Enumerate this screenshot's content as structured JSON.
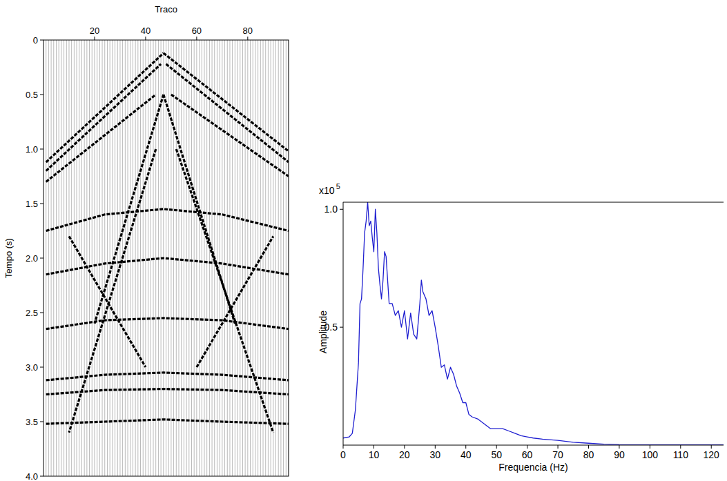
{
  "chart_data": [
    {
      "type": "wiggle",
      "x_label": "Traco",
      "y_label": "Tempo (s)",
      "xlim": [
        0,
        96
      ],
      "xticks": [
        20,
        40,
        60,
        80
      ],
      "ylim": [
        0,
        4
      ],
      "yticks": [
        0,
        0.5,
        {
          "value": 1,
          "label": "1.0"
        },
        1.5,
        {
          "value": 2,
          "label": "2.0"
        },
        2.5,
        {
          "value": 3,
          "label": "3.0"
        },
        3.5,
        {
          "value": 4,
          "label": "4.0"
        }
      ],
      "color": "#000000",
      "traces": {
        "x": [
          1,
          2,
          3,
          4,
          5,
          6,
          7,
          8,
          9,
          10,
          11,
          12,
          13,
          14,
          15,
          16,
          17,
          18,
          19,
          20,
          21,
          22,
          23,
          24,
          25,
          26,
          27,
          28,
          29,
          30,
          31,
          32,
          33,
          34,
          35,
          36,
          37,
          38,
          39,
          40,
          41,
          42,
          43,
          44,
          45,
          46,
          47,
          48,
          49,
          50,
          51,
          52,
          53,
          54,
          55,
          56,
          57,
          58,
          59,
          60,
          61,
          62,
          63,
          64,
          65,
          66,
          67,
          68,
          69,
          70,
          71,
          72,
          73,
          74,
          75,
          76,
          77,
          78,
          79,
          80,
          81,
          82,
          83,
          84,
          85,
          86,
          87,
          88,
          89,
          90,
          91,
          92,
          93,
          94,
          95,
          96
        ]
      },
      "events": [
        {
          "x": [
            1,
            47
          ],
          "values": [
            1.12,
            0.12
          ]
        },
        {
          "x": [
            47,
            96
          ],
          "values": [
            0.12,
            1.02
          ]
        },
        {
          "x": [
            1,
            46
          ],
          "values": [
            1.2,
            0.22
          ]
        },
        {
          "x": [
            48,
            96
          ],
          "values": [
            0.22,
            1.12
          ]
        },
        {
          "x": [
            1,
            44
          ],
          "values": [
            1.3,
            0.5
          ]
        },
        {
          "x": [
            50,
            96
          ],
          "values": [
            0.5,
            1.25
          ]
        },
        {
          "x": [
            47,
            20
          ],
          "values": [
            0.5,
            2.6
          ]
        },
        {
          "x": [
            47,
            75
          ],
          "values": [
            0.5,
            2.6
          ]
        },
        {
          "x": [
            44,
            10
          ],
          "values": [
            1.0,
            3.6
          ]
        },
        {
          "x": [
            52,
            90
          ],
          "values": [
            1.0,
            3.6
          ]
        },
        {
          "x": [
            1,
            24,
            47,
            70,
            96
          ],
          "values": [
            1.75,
            1.6,
            1.55,
            1.6,
            1.75
          ]
        },
        {
          "x": [
            1,
            24,
            47,
            70,
            96
          ],
          "values": [
            2.15,
            2.05,
            2.0,
            2.05,
            2.15
          ]
        },
        {
          "x": [
            1,
            24,
            47,
            70,
            96
          ],
          "values": [
            2.65,
            2.57,
            2.55,
            2.57,
            2.65
          ]
        },
        {
          "x": [
            1,
            24,
            47,
            70,
            96
          ],
          "values": [
            3.12,
            3.07,
            3.05,
            3.07,
            3.12
          ]
        },
        {
          "x": [
            1,
            24,
            47,
            70,
            96
          ],
          "values": [
            3.25,
            3.21,
            3.2,
            3.21,
            3.25
          ]
        },
        {
          "x": [
            1,
            24,
            47,
            70,
            96
          ],
          "values": [
            3.52,
            3.5,
            3.48,
            3.5,
            3.52
          ]
        },
        {
          "x": [
            10,
            40
          ],
          "values": [
            1.8,
            3.0
          ]
        },
        {
          "x": [
            60,
            90
          ],
          "values": [
            3.0,
            1.8
          ]
        }
      ]
    },
    {
      "type": "line",
      "x_label": "Frequencia (Hz)",
      "y_label": "Amplitude",
      "y_multiplier": {
        "text": "x10",
        "exponent": "5"
      },
      "xlim": [
        0,
        124
      ],
      "xticks": [
        0,
        10,
        20,
        30,
        40,
        50,
        60,
        70,
        80,
        90,
        100,
        110,
        120
      ],
      "ylim": [
        0,
        1.03
      ],
      "yticks": [
        0.5,
        {
          "value": 1,
          "label": "1.0"
        }
      ],
      "color": "#1f1fd0",
      "x": [
        0,
        2,
        3,
        4,
        5,
        5.5,
        6,
        6.5,
        7,
        7.5,
        8,
        8.5,
        9,
        9.5,
        10,
        10.5,
        11,
        11.5,
        12,
        12.5,
        13,
        13.5,
        14,
        14.5,
        15,
        16,
        17,
        18,
        19,
        20,
        21,
        22,
        23,
        24,
        25,
        25.5,
        26,
        27,
        28,
        29,
        30,
        31,
        32,
        33,
        34,
        35,
        36,
        37,
        38,
        39,
        40,
        41,
        42,
        44,
        46,
        48,
        50,
        52,
        54,
        56,
        58,
        60,
        62,
        65,
        70,
        75,
        80,
        85,
        90,
        100,
        110,
        124
      ],
      "values": [
        0.03,
        0.035,
        0.05,
        0.15,
        0.35,
        0.6,
        0.62,
        0.75,
        0.9,
        0.95,
        1.03,
        0.93,
        0.95,
        0.88,
        0.82,
        1.0,
        0.9,
        0.75,
        0.68,
        0.62,
        0.7,
        0.82,
        0.8,
        0.7,
        0.6,
        0.6,
        0.55,
        0.57,
        0.5,
        0.57,
        0.45,
        0.56,
        0.47,
        0.45,
        0.6,
        0.7,
        0.65,
        0.62,
        0.55,
        0.57,
        0.5,
        0.42,
        0.33,
        0.34,
        0.28,
        0.33,
        0.3,
        0.25,
        0.22,
        0.18,
        0.18,
        0.13,
        0.12,
        0.11,
        0.09,
        0.07,
        0.07,
        0.07,
        0.06,
        0.05,
        0.04,
        0.035,
        0.03,
        0.025,
        0.02,
        0.012,
        0.008,
        0.004,
        0.002,
        0.001,
        0.001,
        0.001
      ]
    }
  ]
}
